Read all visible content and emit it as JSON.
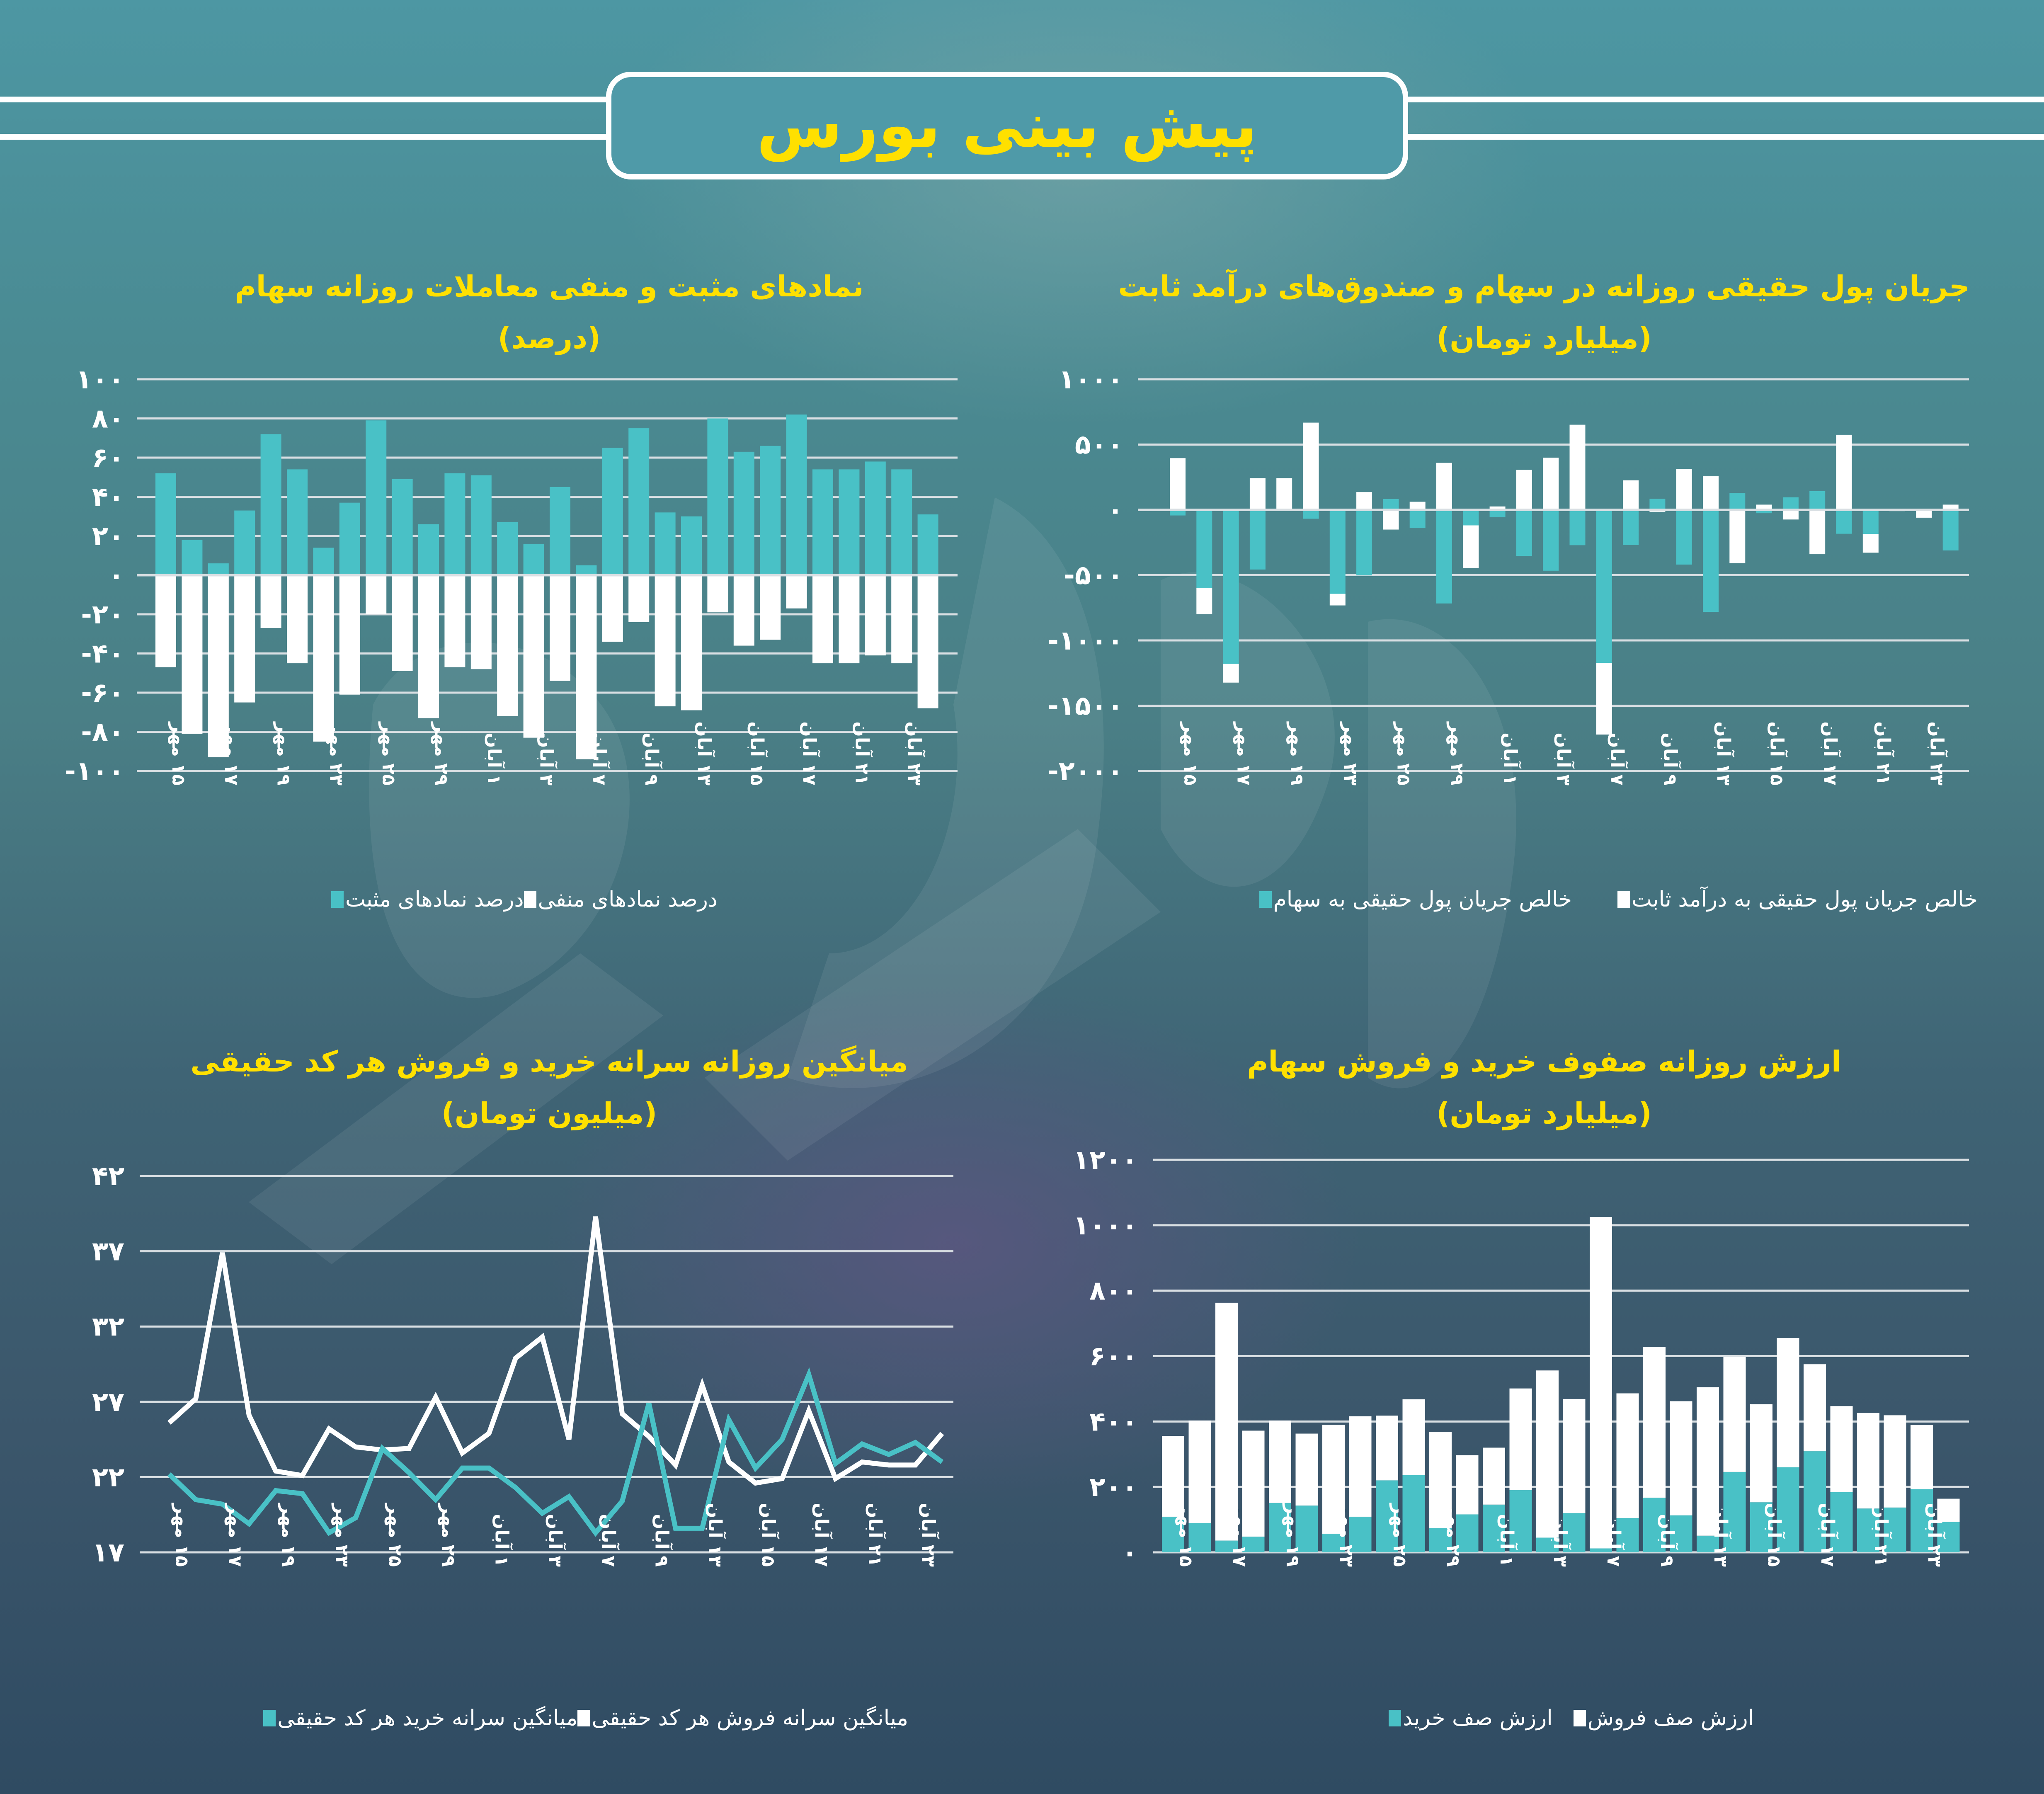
{
  "header": {
    "title": "پیش بینی بورس"
  },
  "colors": {
    "accent_cyan": "#49c1c6",
    "white": "#ffffff",
    "title_yellow": "#ffe000",
    "grid": "#d9dfe3"
  },
  "x_labels": [
    "۱۵ مهر",
    "۱۷ مهر",
    "۱۹ مهر",
    "۲۳ مهر",
    "۲۵ مهر",
    "۲۹ مهر",
    "۱ آبان",
    "۳ آبان",
    "۷ آبان",
    "۹ آبان",
    "۱۳ آبان",
    "۱۵ آبان",
    "۱۷ آبان",
    "۲۱ آبان",
    "۲۳ آبان"
  ],
  "charts": {
    "symbols": {
      "title": "نمادهای مثبت و منفی معاملات روزانه سهام",
      "subtitle": "(درصد)",
      "legend": [
        {
          "label": "درصد نمادهای مثبت",
          "color": "#49c1c6"
        },
        {
          "label": "درصد نمادهای منفی",
          "color": "#ffffff"
        }
      ]
    },
    "money_flow": {
      "title": "جریان پول حقیقی روزانه در سهام و صندوق‌های درآمد ثابت",
      "subtitle": "(میلیارد تومان)",
      "legend": [
        {
          "label": "خالص جریان پول حقیقی به درآمد ثابت",
          "color": "#ffffff"
        },
        {
          "label": "خالص جریان پول حقیقی به سهام",
          "color": "#49c1c6"
        }
      ]
    },
    "per_capita": {
      "title": "میانگین روزانه سرانه خرید و فروش هر کد حقیقی",
      "subtitle": "(میلیون تومان)",
      "legend": [
        {
          "label": "میانگین سرانه فروش هر کد حقیقی",
          "color": "#ffffff"
        },
        {
          "label": "میانگین سرانه خرید هر کد حقیقی",
          "color": "#49c1c6"
        }
      ]
    },
    "queues": {
      "title": "ارزش روزانه صفوف خرید و فروش سهام",
      "subtitle": "(میلیارد تومان)",
      "legend": [
        {
          "label": "ارزش صف فروش",
          "color": "#ffffff"
        },
        {
          "label": "ارزش صف خرید",
          "color": "#49c1c6"
        }
      ]
    }
  },
  "chart_data": [
    {
      "id": "symbols",
      "type": "bar",
      "title": "نمادهای مثبت و منفی معاملات روزانه سهام",
      "subtitle": "(درصد)",
      "xlabel": "",
      "ylabel": "درصد",
      "ylim": [
        -100,
        100
      ],
      "yticks": [
        100,
        80,
        60,
        40,
        20,
        0,
        -20,
        -40,
        -60,
        -80,
        -100
      ],
      "ytick_labels": [
        "۱۰۰",
        "۸۰",
        "۶۰",
        "۴۰",
        "۲۰",
        "۰",
        "-۲۰",
        "-۴۰",
        "-۶۰",
        "-۸۰",
        "-۱۰۰"
      ],
      "grid": true,
      "legend_position": "bottom",
      "x_tick_labels_every_other_bar": true,
      "n_points": 30,
      "series": [
        {
          "name": "درصد نمادهای مثبت",
          "color": "#49c1c6",
          "values": [
            52,
            18,
            6,
            33,
            72,
            54,
            14,
            37,
            79,
            49,
            26,
            52,
            51,
            27,
            16,
            45,
            5,
            65,
            75,
            32,
            30,
            80,
            63,
            66,
            82,
            54,
            54,
            58,
            54,
            31
          ]
        },
        {
          "name": "درصد نمادهای منفی",
          "color": "#ffffff",
          "values": [
            -47,
            -81,
            -93,
            -65,
            -27,
            -45,
            -85,
            -61,
            -20,
            -49,
            -73,
            -47,
            -48,
            -72,
            -83,
            -54,
            -94,
            -34,
            -24,
            -67,
            -69,
            -19,
            -36,
            -33,
            -17,
            -45,
            -45,
            -41,
            -45,
            -68
          ]
        }
      ]
    },
    {
      "id": "money_flow",
      "type": "bar",
      "stacked": true,
      "title": "جریان پول حقیقی روزانه در سهام و صندوق‌های درآمد ثابت",
      "subtitle": "(میلیارد تومان)",
      "xlabel": "",
      "ylabel": "میلیارد تومان",
      "ylim": [
        -2000,
        1000
      ],
      "yticks": [
        1000,
        500,
        0,
        -500,
        -1000,
        -1500,
        -2000
      ],
      "ytick_labels": [
        "۱۰۰۰",
        "۵۰۰",
        "۰",
        "-۵۰۰",
        "-۱۰۰۰",
        "-۱۵۰۰",
        "-۲۰۰۰"
      ],
      "grid": true,
      "legend_position": "bottom",
      "n_points": 30,
      "series": [
        {
          "name": "خالص جریان پول حقیقی به سهام",
          "color": "#49c1c6",
          "values": [
            -43,
            -600,
            -1180,
            -457,
            0,
            -68,
            -643,
            -502,
            83,
            -140,
            -717,
            -119,
            -57,
            -353,
            -466,
            -271,
            -1172,
            -270,
            85,
            -419,
            -781,
            130,
            -26,
            96,
            143,
            -183,
            -185,
            0,
            0,
            -311
          ]
        },
        {
          "name": "خالص جریان پول حقیقی به درآمد ثابت",
          "color": "#ffffff",
          "values": [
            396,
            -200,
            -143,
            243,
            243,
            668,
            -89,
            136,
            -151,
            62,
            360,
            -328,
            26,
            306,
            400,
            652,
            -549,
            226,
            -15,
            313,
            257,
            -409,
            40,
            -74,
            -340,
            575,
            -143,
            -10,
            -60,
            40
          ]
        }
      ]
    },
    {
      "id": "per_capita",
      "type": "line",
      "title": "میانگین روزانه سرانه خرید و فروش هر کد حقیقی",
      "subtitle": "(میلیون تومان)",
      "xlabel": "",
      "ylabel": "میلیون تومان",
      "ylim": [
        17,
        42
      ],
      "yticks": [
        42,
        37,
        32,
        27,
        22,
        17
      ],
      "ytick_labels": [
        "۴۲",
        "۳۷",
        "۳۲",
        "۲۷",
        "۲۲",
        "۱۷"
      ],
      "grid": true,
      "legend_position": "bottom",
      "n_points": 30,
      "series": [
        {
          "name": "میانگین سرانه فروش هر کد حقیقی",
          "color": "#ffffff",
          "values": [
            25.6,
            27.2,
            36.9,
            26.1,
            22.4,
            22.1,
            25.2,
            24.0,
            23.8,
            23.9,
            27.3,
            23.6,
            24.9,
            29.9,
            31.3,
            24.5,
            39.3,
            26.2,
            24.7,
            22.8,
            28.1,
            23.0,
            21.6,
            21.9,
            26.4,
            21.9,
            23.0,
            22.8,
            22.8,
            24.9
          ]
        },
        {
          "name": "میانگین سرانه خرید هر کد حقیقی",
          "color": "#49c1c6",
          "values": [
            22.2,
            20.5,
            20.2,
            18.9,
            21.1,
            20.9,
            18.3,
            19.3,
            23.9,
            22.3,
            20.5,
            22.6,
            22.6,
            21.3,
            19.6,
            20.7,
            18.3,
            20.4,
            26.9,
            18.6,
            18.6,
            25.8,
            22.6,
            24.5,
            28.8,
            22.9,
            24.2,
            23.5,
            24.3,
            23.0
          ]
        }
      ]
    },
    {
      "id": "queues",
      "type": "bar",
      "stacked": true,
      "title": "ارزش روزانه صفوف خرید و فروش سهام",
      "subtitle": "(میلیارد تومان)",
      "xlabel": "",
      "ylabel": "میلیارد تومان",
      "ylim": [
        0,
        1200
      ],
      "yticks": [
        1200,
        1000,
        800,
        600,
        400,
        200,
        0
      ],
      "ytick_labels": [
        "۱۲۰۰",
        "۱۰۰۰",
        "۸۰۰",
        "۶۰۰",
        "۴۰۰",
        "۲۰۰",
        "۰"
      ],
      "grid": true,
      "legend_position": "bottom",
      "n_points": 30,
      "series": [
        {
          "name": "ارزش صف خرید",
          "color": "#49c1c6",
          "values": [
            109,
            90,
            36,
            48,
            151,
            143,
            57,
            109,
            220,
            236,
            74,
            116,
            146,
            190,
            45,
            120,
            12,
            105,
            167,
            113,
            51,
            246,
            153,
            260,
            309,
            184,
            134,
            137,
            193,
            93
          ]
        },
        {
          "name": "ارزش صف فروش",
          "color": "#ffffff",
          "values": [
            247,
            313,
            727,
            324,
            252,
            220,
            333,
            307,
            198,
            232,
            294,
            181,
            174,
            311,
            511,
            349,
            1013,
            381,
            461,
            349,
            454,
            351,
            300,
            395,
            266,
            263,
            292,
            282,
            196,
            71
          ]
        }
      ]
    }
  ]
}
